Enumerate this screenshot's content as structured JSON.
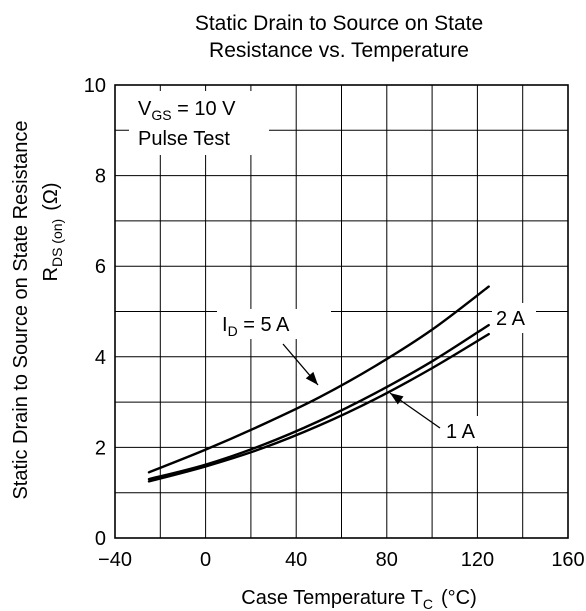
{
  "chart_data": {
    "type": "line",
    "title_line1": "Static Drain to Source on State",
    "title_line2": "Resistance vs. Temperature",
    "ylabel_line1": "Static Drain to Source on State Resistance",
    "ylabel_line2_main": "R",
    "ylabel_line2_sub": "DS (on)",
    "ylabel_line2_unit": "(Ω)",
    "xlabel_main": "Case Temperature  T",
    "xlabel_sub": "C",
    "xlabel_unit": "(°C)",
    "xlim": [
      -40,
      160
    ],
    "ylim": [
      0,
      10
    ],
    "x_ticks": [
      -40,
      0,
      40,
      80,
      120,
      160
    ],
    "x_tick_labels": [
      "−40",
      "0",
      "40",
      "80",
      "120",
      "160"
    ],
    "y_ticks": [
      0,
      2,
      4,
      6,
      8,
      10
    ],
    "y_tick_labels": [
      "0",
      "2",
      "4",
      "6",
      "8",
      "10"
    ],
    "x_minor_step": 20,
    "y_minor_step": 1,
    "grid": true,
    "annotation": {
      "vgs_main": "V",
      "vgs_sub": "GS",
      "vgs_value": " = 10 V",
      "pulse": "Pulse Test"
    },
    "series": [
      {
        "name": "5 A",
        "label_main": "I",
        "label_sub": "D",
        "label_rest": " = 5 A",
        "x": [
          -25,
          0,
          25,
          50,
          75,
          100,
          125
        ],
        "y": [
          1.45,
          1.95,
          2.5,
          3.1,
          3.8,
          4.6,
          5.55
        ]
      },
      {
        "name": "2 A",
        "label_main": "2 A",
        "x": [
          -25,
          0,
          25,
          50,
          75,
          100,
          125
        ],
        "y": [
          1.3,
          1.62,
          2.05,
          2.58,
          3.2,
          3.9,
          4.7
        ]
      },
      {
        "name": "1 A",
        "label_main": "1 A",
        "x": [
          -25,
          0,
          25,
          50,
          75,
          100,
          125
        ],
        "y": [
          1.25,
          1.58,
          1.98,
          2.48,
          3.07,
          3.75,
          4.5
        ]
      }
    ]
  }
}
